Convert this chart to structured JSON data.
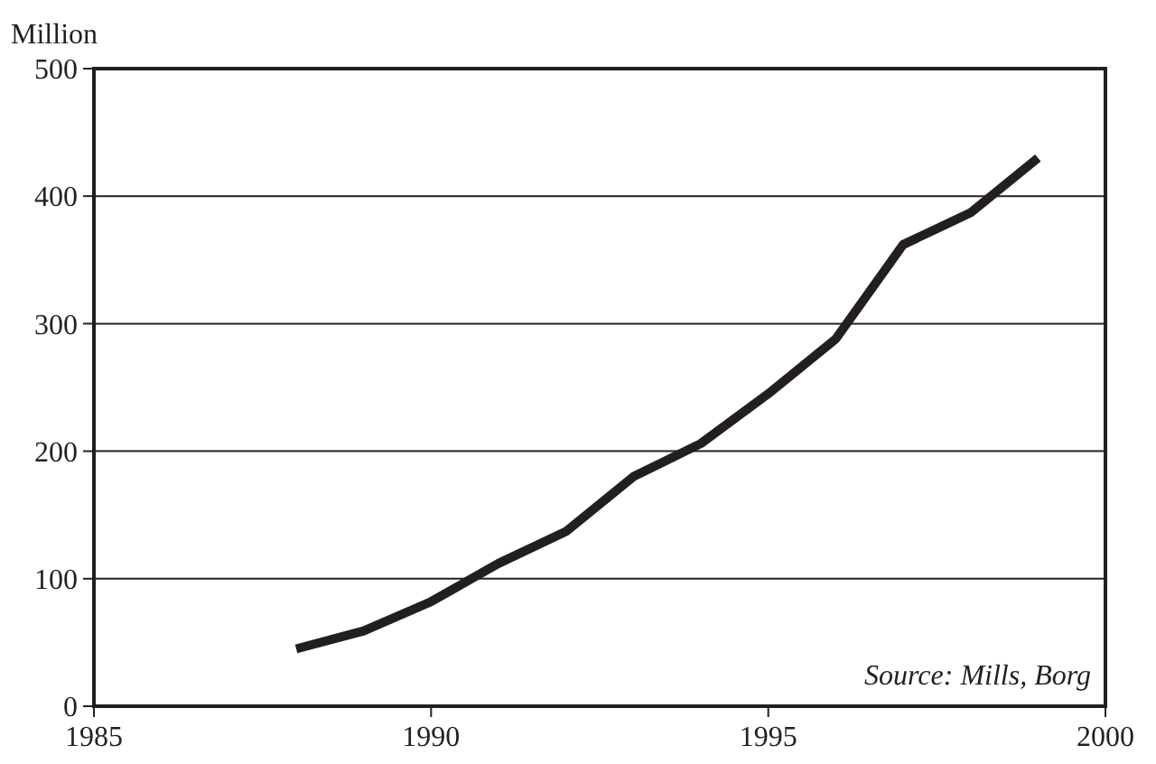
{
  "chart_data": {
    "type": "line",
    "ylabel": "Million",
    "annotations": [
      "Source: Mills, Borg"
    ],
    "x": [
      1988,
      1989,
      1990,
      1991,
      1992,
      1993,
      1994,
      1995,
      1996,
      1997,
      1998,
      1999
    ],
    "series": [
      {
        "color": "#231f20",
        "values": [
          45,
          59,
          82,
          112,
          137,
          180,
          206,
          245,
          288,
          362,
          387,
          430
        ]
      }
    ],
    "xlim": [
      1985,
      2000
    ],
    "xticks": [
      1985,
      1990,
      1995,
      2000
    ],
    "ylim": [
      0,
      500
    ],
    "yticks": [
      0,
      100,
      200,
      300,
      400,
      500
    ],
    "grid": "y",
    "line_style": "solid"
  }
}
